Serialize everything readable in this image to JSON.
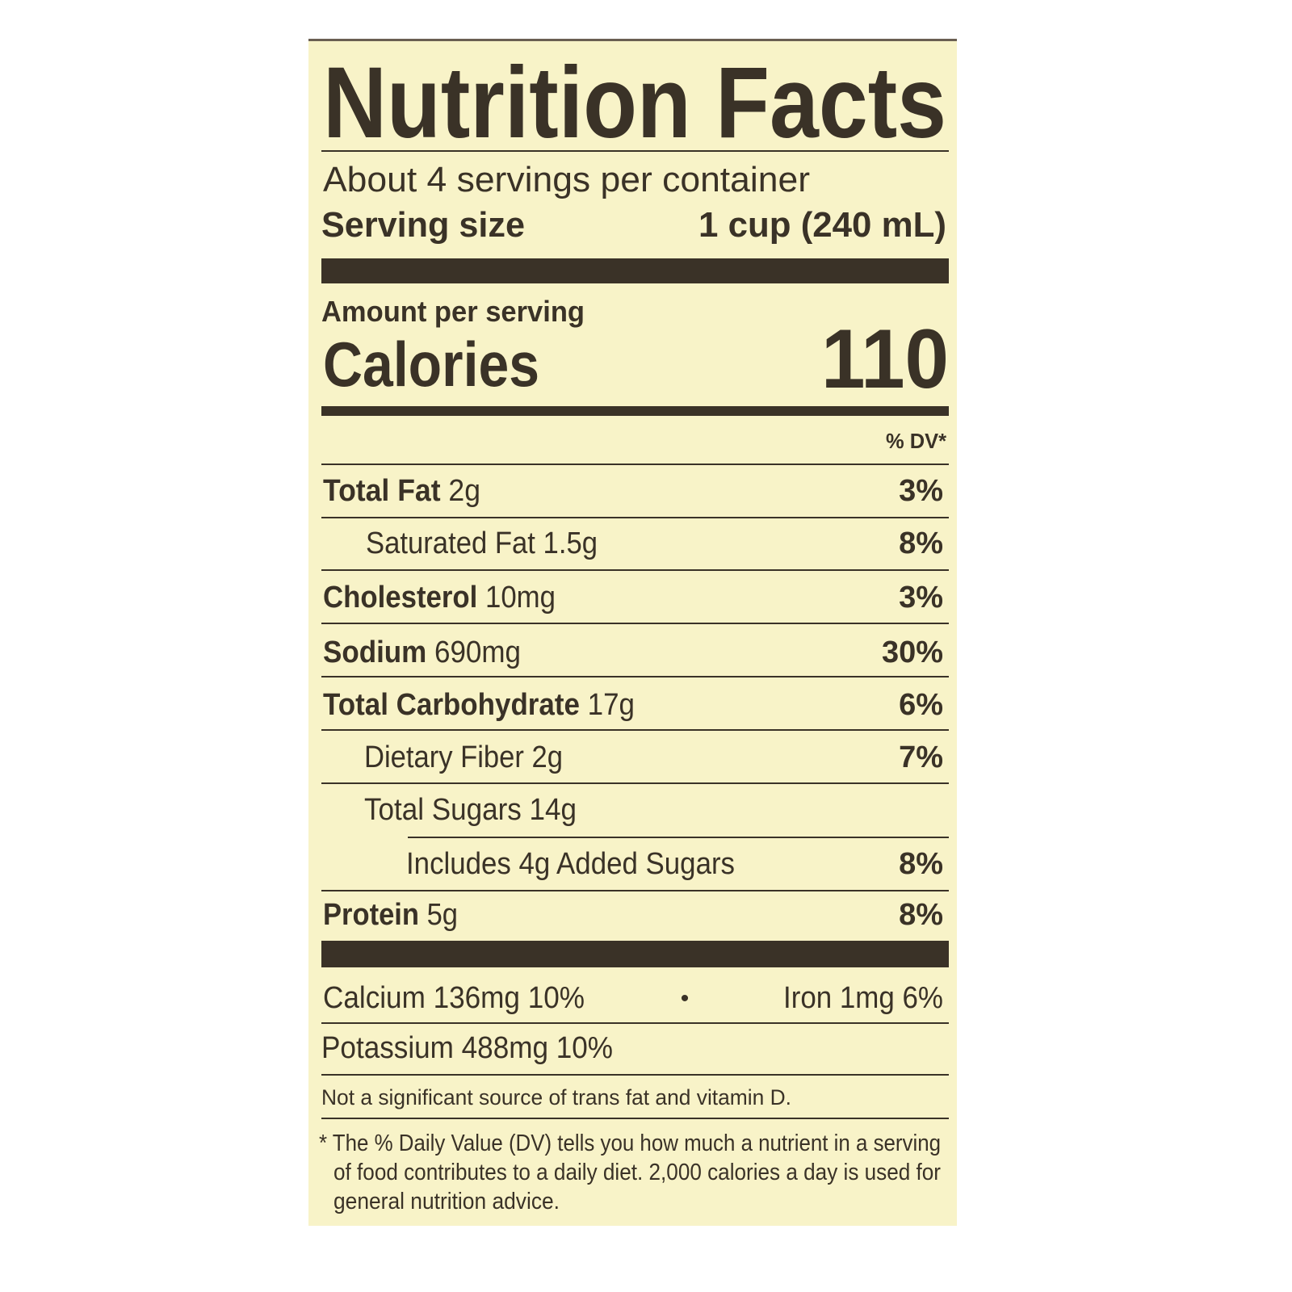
{
  "label": {
    "title": "Nutrition Facts",
    "servings_per_container": "About 4 servings per container",
    "serving_size_label": "Serving size",
    "serving_size_value": "1 cup (240 mL)",
    "amount_per_serving": "Amount per serving",
    "calories_label": "Calories",
    "calories_value": "110",
    "dv_header": "% DV*",
    "nutrients": [
      {
        "name": "Total Fat",
        "amount": "2g",
        "dv": "3%"
      },
      {
        "name": "Saturated Fat",
        "amount": "1.5g",
        "dv": "8%"
      },
      {
        "name": "Cholesterol",
        "amount": "10mg",
        "dv": "3%"
      },
      {
        "name": "Sodium",
        "amount": "690mg",
        "dv": "30%"
      },
      {
        "name": "Total Carbohydrate",
        "amount": "17g",
        "dv": "6%"
      },
      {
        "name": "Dietary Fiber",
        "amount": "2g",
        "dv": "7%"
      },
      {
        "name": "Total Sugars",
        "amount": "14g",
        "dv": ""
      },
      {
        "name": "Includes 4g Added Sugars",
        "amount": "",
        "dv": "8%"
      },
      {
        "name": "Protein",
        "amount": "5g",
        "dv": "8%"
      }
    ],
    "vitamins": {
      "calcium": "Calcium 136mg 10%",
      "separator": "•",
      "iron": "Iron 1mg 6%",
      "potassium": "Potassium 488mg 10%"
    },
    "trans_note": "Not a significant source of trans fat and vitamin D.",
    "footnote": [
      "* The % Daily Value (DV) tells you how much a nutrient in a serving",
      "of food contributes to a daily diet. 2,000 calories a day is used for",
      "general nutrition advice."
    ],
    "colors": {
      "background": "#f8f3c8",
      "ink": "#3a3227"
    }
  }
}
